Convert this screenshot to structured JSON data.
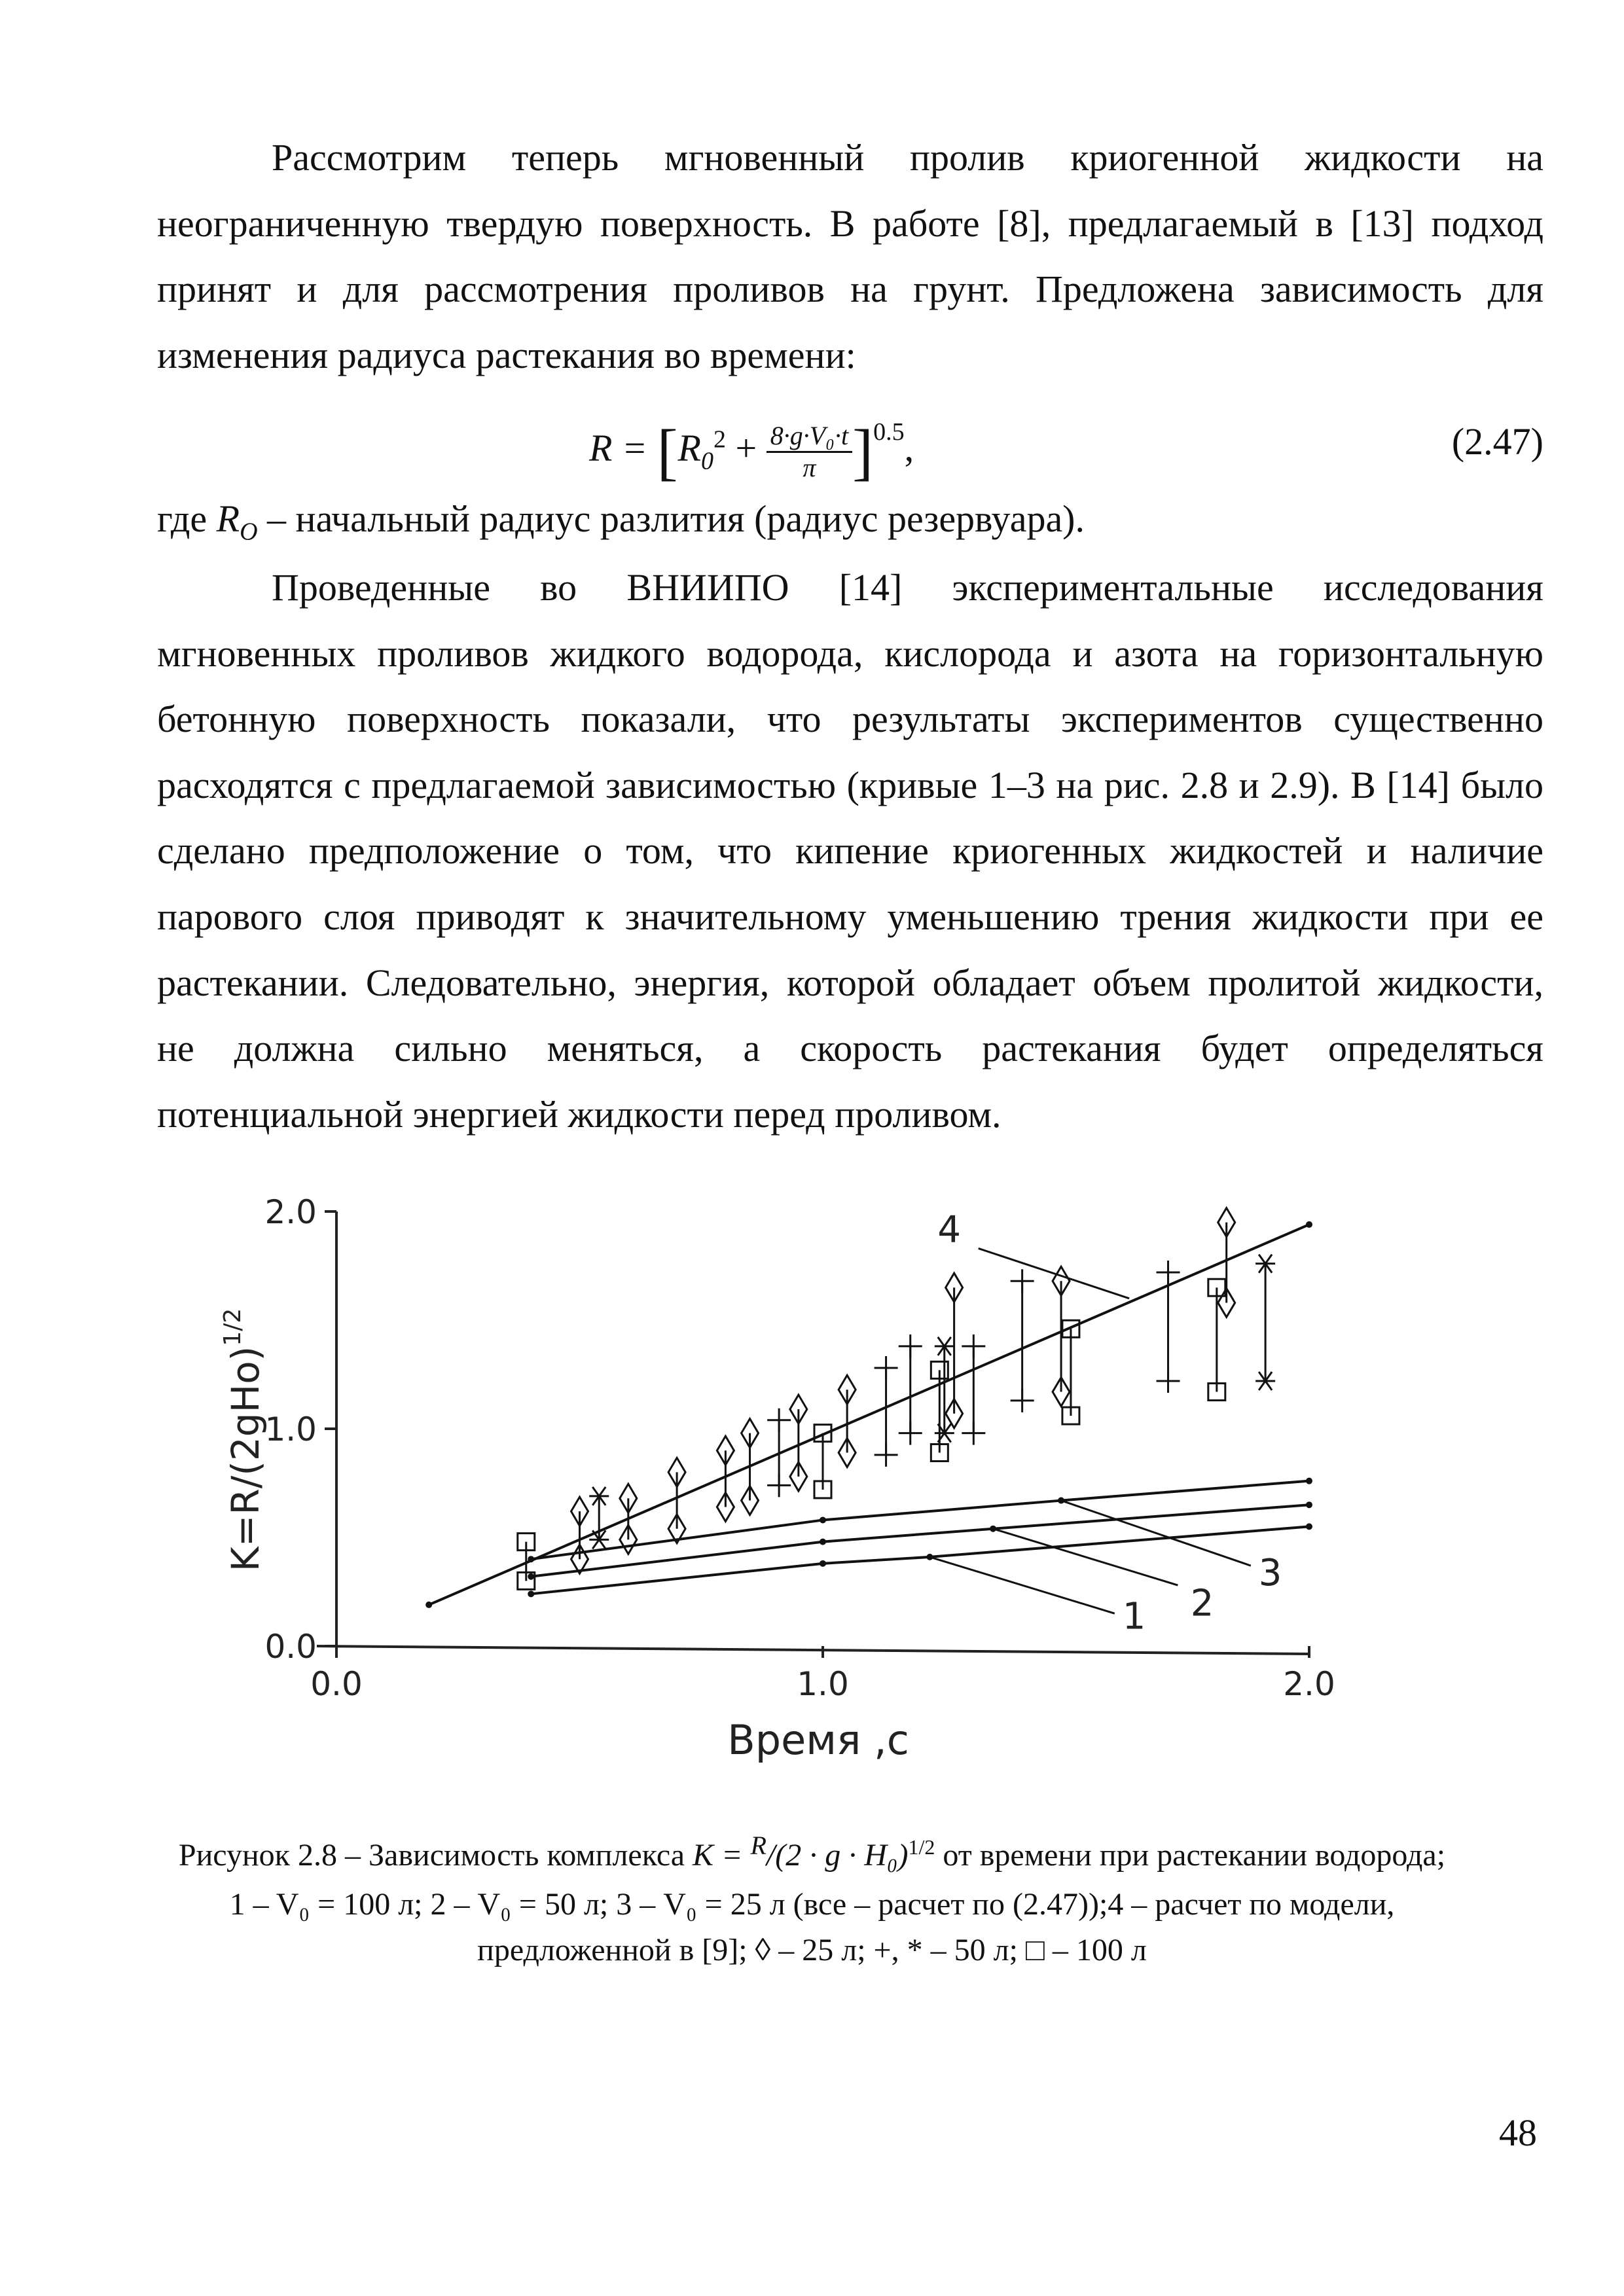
{
  "paragraph1": [
    "Рассмотрим теперь мгновенный пролив криогенной жидкости на",
    "неограниченную твердую поверхность. В работе [8], предлагаемый в [13] подход",
    "принят и для рассмотрения проливов на грунт. Предложена зависимость для",
    "изменения радиуса растекания во времени:"
  ],
  "formula": {
    "lhs": "R = ",
    "r0": "R",
    "r0_sub": "0",
    "r0_sup": "2",
    "plus": " + ",
    "numerator": "8·g·V₀·t",
    "denominator": "π",
    "exponent": "0.5",
    "trail": ",",
    "number": "(2.47)"
  },
  "where_line": {
    "prefix": "где ",
    "symbol": "R",
    "symbol_sub": "O",
    "text": " – начальный радиус разлития (радиус резервуара)."
  },
  "paragraph2": [
    "Проведенные во ВНИИПО [14] экспериментальные исследования",
    "мгновенных проливов жидкого водорода, кислорода и азота на горизонтальную",
    "бетонную поверхность показали, что результаты экспериментов существенно",
    "расходятся с предлагаемой зависимостью (кривые 1–3 на рис. 2.8 и 2.9). В [14] было",
    "сделано предположение о том, что кипение криогенных жидкостей и наличие",
    "парового слоя приводят к значительному уменьшению трения жидкости при ее",
    "растекании. Следовательно, энергия, которой обладает объем пролитой жидкости,",
    "не должна сильно меняться, а скорость растекания будет определяться",
    "потенциальной энергией жидкости перед проливом."
  ],
  "chart_data": {
    "type": "line",
    "xlabel": "Время ,с",
    "ylabel": "K=R/(2gHo)",
    "ylabel_exponent": "1/2",
    "xlim": [
      0,
      2
    ],
    "ylim": [
      0,
      2
    ],
    "xticks": [
      "0.0",
      "1.0",
      "2.0"
    ],
    "yticks": [
      "0.0",
      "1.0",
      "2.0"
    ],
    "grid": false,
    "series": [
      {
        "name": "1",
        "x": [
          0.4,
          1.0,
          1.22,
          2.0
        ],
        "y": [
          0.24,
          0.38,
          0.41,
          0.55
        ]
      },
      {
        "name": "2",
        "x": [
          0.4,
          1.0,
          1.35,
          2.0
        ],
        "y": [
          0.32,
          0.48,
          0.54,
          0.65
        ]
      },
      {
        "name": "3",
        "x": [
          0.4,
          1.0,
          1.49,
          2.0
        ],
        "y": [
          0.4,
          0.58,
          0.67,
          0.76
        ]
      },
      {
        "name": "4",
        "x": [
          0.19,
          2.0
        ],
        "y": [
          0.19,
          1.94
        ]
      }
    ],
    "curve_labels": [
      {
        "text": "1",
        "x": 1.64,
        "y": 0.08,
        "from": [
          1.22,
          0.41
        ],
        "to": [
          1.6,
          0.15
        ]
      },
      {
        "text": "2",
        "x": 1.78,
        "y": 0.14,
        "from": [
          1.35,
          0.54
        ],
        "to": [
          1.73,
          0.28
        ]
      },
      {
        "text": "3",
        "x": 1.92,
        "y": 0.28,
        "from": [
          1.49,
          0.67
        ],
        "to": [
          1.88,
          0.37
        ]
      },
      {
        "text": "4",
        "x": 1.26,
        "y": 1.86,
        "from": [
          1.32,
          1.83
        ],
        "to": [
          1.63,
          1.6
        ]
      }
    ],
    "experimental": [
      {
        "x": 0.39,
        "low": 0.3,
        "high": 0.48,
        "marker": "square"
      },
      {
        "x": 0.5,
        "low": 0.4,
        "high": 0.62,
        "marker": "diamond"
      },
      {
        "x": 0.54,
        "low": 0.49,
        "high": 0.69,
        "marker": "star"
      },
      {
        "x": 0.6,
        "low": 0.49,
        "high": 0.68,
        "marker": "diamond"
      },
      {
        "x": 0.7,
        "low": 0.54,
        "high": 0.8,
        "marker": "diamond"
      },
      {
        "x": 0.8,
        "low": 0.64,
        "high": 0.9,
        "marker": "diamond"
      },
      {
        "x": 0.85,
        "low": 0.67,
        "high": 0.98,
        "marker": "diamond"
      },
      {
        "x": 0.91,
        "low": 0.74,
        "high": 1.04,
        "marker": "plus"
      },
      {
        "x": 0.95,
        "low": 0.78,
        "high": 1.09,
        "marker": "diamond"
      },
      {
        "x": 1.0,
        "low": 0.72,
        "high": 0.98,
        "marker": "square"
      },
      {
        "x": 1.05,
        "low": 0.89,
        "high": 1.18,
        "marker": "diamond"
      },
      {
        "x": 1.13,
        "low": 0.88,
        "high": 1.28,
        "marker": "plus"
      },
      {
        "x": 1.18,
        "low": 0.98,
        "high": 1.38,
        "marker": "plus"
      },
      {
        "x": 1.24,
        "low": 0.89,
        "high": 1.27,
        "marker": "square"
      },
      {
        "x": 1.25,
        "low": 0.98,
        "high": 1.38,
        "marker": "star"
      },
      {
        "x": 1.27,
        "low": 1.07,
        "high": 1.65,
        "marker": "diamond"
      },
      {
        "x": 1.31,
        "low": 0.98,
        "high": 1.38,
        "marker": "plus"
      },
      {
        "x": 1.41,
        "low": 1.13,
        "high": 1.68,
        "marker": "plus"
      },
      {
        "x": 1.49,
        "low": 1.17,
        "high": 1.68,
        "marker": "diamond"
      },
      {
        "x": 1.51,
        "low": 1.06,
        "high": 1.46,
        "marker": "square"
      },
      {
        "x": 1.71,
        "low": 1.22,
        "high": 1.72,
        "marker": "plus"
      },
      {
        "x": 1.81,
        "low": 1.17,
        "high": 1.65,
        "marker": "square"
      },
      {
        "x": 1.83,
        "low": 1.58,
        "high": 1.95,
        "marker": "diamond"
      },
      {
        "x": 1.91,
        "low": 1.22,
        "high": 1.76,
        "marker": "star"
      }
    ]
  },
  "caption": {
    "line1_prefix": "Рисунок 2.8 – Зависимость комплекса ",
    "line1_formula_k": "K = ",
    "line1_formula_num": "R",
    "line1_formula_den": "/(2 · g · H₀)",
    "line1_formula_exp": "1/2",
    "line1_suffix": " от времени при растекании водорода;",
    "line2": "1 – V₀ = 100 л; 2 – V₀ = 50 л; 3 – V₀ = 25 л (все – расчет по (2.47));4 – расчет по модели,",
    "line3": "предложенной в [9]; ◊ – 25 л; +, * – 50 л; □ – 100 л"
  },
  "page_number": "48"
}
